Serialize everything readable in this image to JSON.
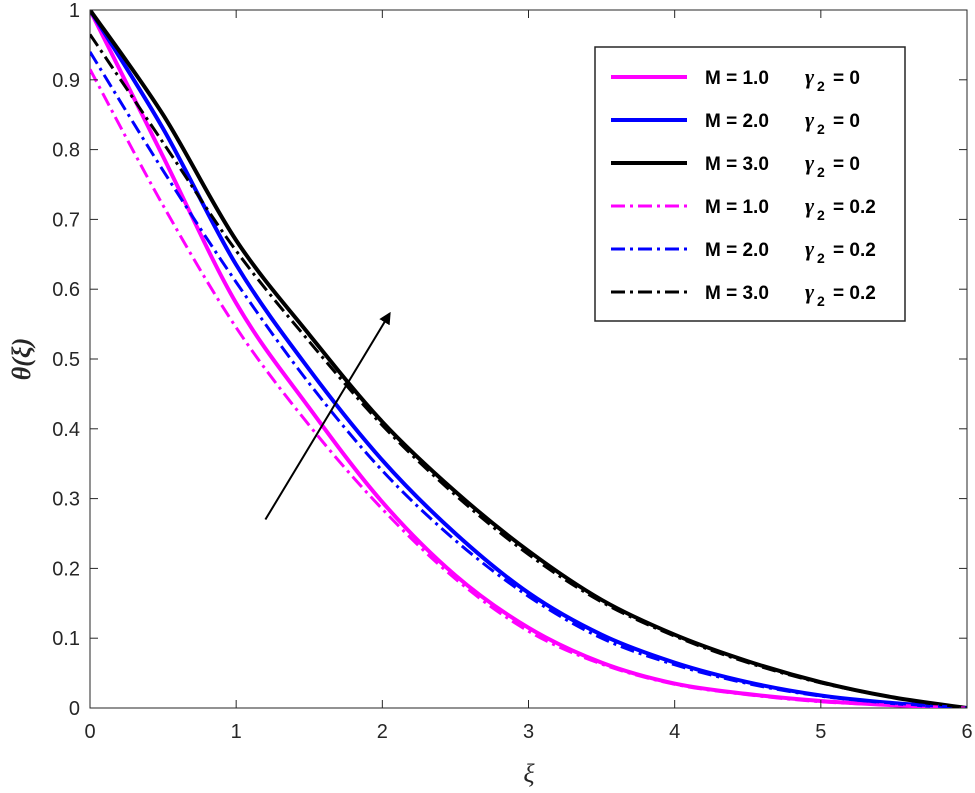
{
  "chart_data": {
    "type": "line",
    "xlabel": "ξ",
    "ylabel": "θ(ξ)",
    "xlim": [
      0,
      6
    ],
    "ylim": [
      0,
      1
    ],
    "xticks": [
      "0",
      "1",
      "2",
      "3",
      "4",
      "5",
      "6"
    ],
    "yticks": [
      "0",
      "0.1",
      "0.2",
      "0.3",
      "0.4",
      "0.5",
      "0.6",
      "0.7",
      "0.8",
      "0.9",
      "1"
    ],
    "grid": false,
    "legend_position": "top-right",
    "x": [
      0,
      0.5,
      1,
      1.5,
      2,
      2.5,
      3,
      3.5,
      4,
      4.5,
      5,
      5.5,
      6
    ],
    "series": [
      {
        "name": "M = 1.0  γ2 = 0",
        "M": "M = 1.0",
        "gamma": "0",
        "color": "#ff00ff",
        "style": "solid",
        "values": [
          1.0,
          0.79,
          0.58,
          0.43,
          0.295,
          0.19,
          0.115,
          0.065,
          0.035,
          0.02,
          0.01,
          0.004,
          0.0
        ]
      },
      {
        "name": "M = 2.0  γ2 = 0",
        "M": "M = 2.0",
        "gamma": "0",
        "color": "#0000ff",
        "style": "solid",
        "values": [
          1.0,
          0.83,
          0.635,
          0.485,
          0.355,
          0.25,
          0.165,
          0.105,
          0.065,
          0.037,
          0.018,
          0.007,
          0.0
        ]
      },
      {
        "name": "M = 3.0  γ2 = 0",
        "M": "M = 3.0",
        "gamma": "0",
        "color": "#000000",
        "style": "solid",
        "values": [
          1.0,
          0.85,
          0.67,
          0.535,
          0.41,
          0.31,
          0.225,
          0.155,
          0.105,
          0.067,
          0.037,
          0.015,
          0.0
        ]
      },
      {
        "name": "M = 1.0  γ2 = 0.2",
        "M": "M = 1.0",
        "gamma": "0.2",
        "color": "#ff00ff",
        "style": "dashdot",
        "values": [
          0.915,
          0.72,
          0.545,
          0.405,
          0.285,
          0.185,
          0.11,
          0.063,
          0.034,
          0.019,
          0.009,
          0.004,
          0.0
        ]
      },
      {
        "name": "M = 2.0  γ2 = 0.2",
        "M": "M = 2.0",
        "gamma": "0.2",
        "color": "#0000ff",
        "style": "dashdot",
        "values": [
          0.94,
          0.77,
          0.61,
          0.465,
          0.34,
          0.24,
          0.16,
          0.1,
          0.062,
          0.035,
          0.017,
          0.007,
          0.0
        ]
      },
      {
        "name": "M = 3.0  γ2 = 0.2",
        "M": "M = 3.0",
        "gamma": "0.2",
        "color": "#000000",
        "style": "dashdot",
        "values": [
          0.965,
          0.81,
          0.655,
          0.525,
          0.405,
          0.305,
          0.22,
          0.152,
          0.103,
          0.065,
          0.036,
          0.015,
          0.0
        ]
      }
    ],
    "annotation": {
      "type": "arrow",
      "from": [
        1.2,
        0.27
      ],
      "to": [
        2.05,
        0.565
      ]
    }
  }
}
